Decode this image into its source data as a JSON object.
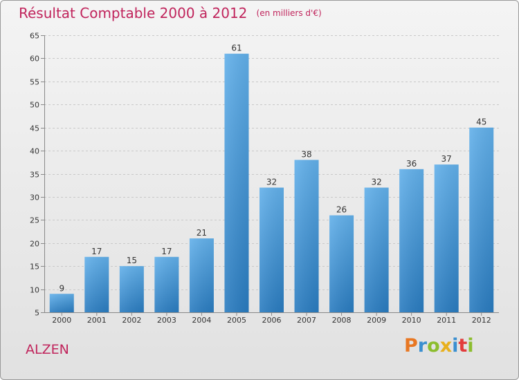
{
  "title": {
    "main": "Résultat Comptable 2000 à 2012",
    "sub": "(en milliers d'€)"
  },
  "location": "ALZEN",
  "logo": {
    "letters": [
      "P",
      "r",
      "o",
      "x",
      "i",
      "t",
      "i"
    ],
    "colors": [
      "#e87722",
      "#3a8fd0",
      "#8cbd2e",
      "#e8b01c",
      "#3a8fd0",
      "#e23c3c",
      "#8cbd2e"
    ]
  },
  "colors": {
    "bar_light": "#62b0ea",
    "bar_dark": "#2a7cc0",
    "title": "#c0235b"
  },
  "chart_data": {
    "type": "bar",
    "title": "Résultat Comptable 2000 à 2012",
    "ylabel": "",
    "xlabel": "",
    "categories": [
      "2000",
      "2001",
      "2002",
      "2003",
      "2004",
      "2005",
      "2006",
      "2007",
      "2008",
      "2009",
      "2010",
      "2011",
      "2012"
    ],
    "values": [
      9,
      17,
      15,
      17,
      21,
      61,
      32,
      38,
      26,
      32,
      36,
      37,
      45
    ],
    "value_labels": [
      "9",
      "17",
      "15",
      "17",
      "21",
      "61",
      "32",
      "38",
      "26",
      "32",
      "36",
      "37",
      "45"
    ],
    "ylim": [
      5,
      65
    ],
    "yticks": [
      5,
      10,
      15,
      20,
      25,
      30,
      35,
      40,
      45,
      50,
      55,
      60,
      65
    ],
    "ytick_labels": [
      "5",
      "10",
      "15",
      "20",
      "25",
      "30",
      "35",
      "40",
      "45",
      "50",
      "55",
      "60",
      "65"
    ],
    "grid": true
  }
}
